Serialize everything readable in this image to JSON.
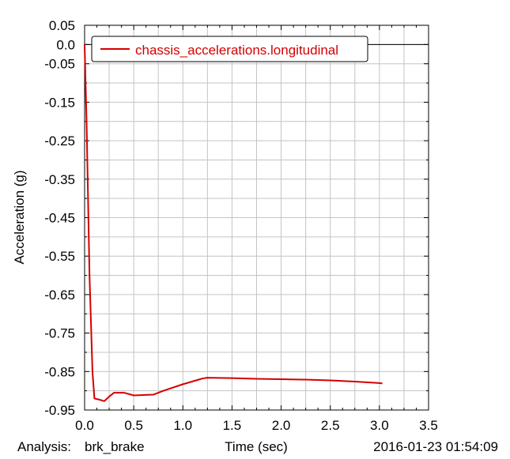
{
  "chart_data": {
    "type": "line",
    "title": "",
    "xlabel": "Time (sec)",
    "ylabel": "Acceleration (g)",
    "xlim": [
      0.0,
      3.5
    ],
    "ylim": [
      -0.95,
      0.05
    ],
    "x_ticks": [
      0.0,
      0.5,
      1.0,
      1.5,
      2.0,
      2.5,
      3.0,
      3.5
    ],
    "x_tick_labels": [
      "0.0",
      "0.5",
      "1.0",
      "1.5",
      "2.0",
      "2.5",
      "3.0",
      "3.5"
    ],
    "y_ticks": [
      0.05,
      0.0,
      -0.05,
      -0.15,
      -0.25,
      -0.35,
      -0.45,
      -0.55,
      -0.65,
      -0.75,
      -0.85,
      -0.95
    ],
    "y_tick_labels": [
      "0.05",
      "0.0",
      "-0.05",
      "-0.15",
      "-0.25",
      "-0.35",
      "-0.45",
      "-0.55",
      "-0.65",
      "-0.75",
      "-0.85",
      "-0.95"
    ],
    "grid": true,
    "legend_position": "top-left",
    "series": [
      {
        "name": "chassis_accelerations.longitudinal",
        "color": "#d40000",
        "x": [
          0.0,
          0.02,
          0.05,
          0.08,
          0.1,
          0.15,
          0.2,
          0.25,
          0.3,
          0.4,
          0.5,
          0.6,
          0.7,
          0.8,
          1.0,
          1.2,
          1.25,
          1.5,
          1.75,
          2.0,
          2.25,
          2.5,
          2.75,
          3.0,
          3.03
        ],
        "y": [
          0.0,
          -0.2,
          -0.6,
          -0.85,
          -0.92,
          -0.923,
          -0.927,
          -0.915,
          -0.905,
          -0.905,
          -0.912,
          -0.911,
          -0.91,
          -0.9,
          -0.883,
          -0.868,
          -0.866,
          -0.867,
          -0.869,
          -0.87,
          -0.871,
          -0.873,
          -0.876,
          -0.88,
          -0.881
        ]
      }
    ]
  },
  "footer": {
    "analysis_label": "Analysis:",
    "analysis_name": "brk_brake",
    "timestamp": "2016-01-23 01:54:09"
  }
}
